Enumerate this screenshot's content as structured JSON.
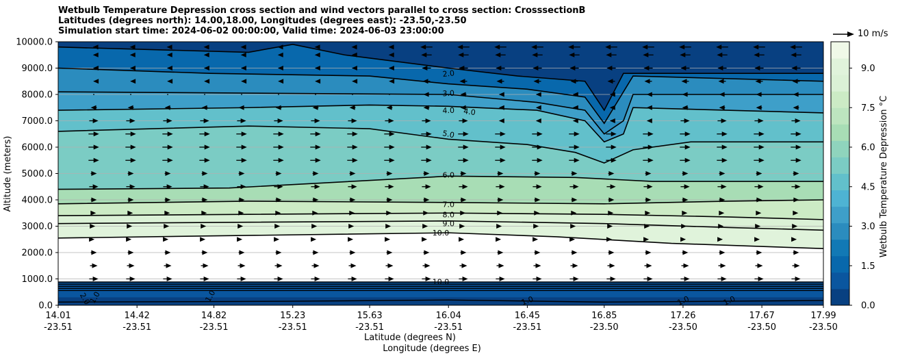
{
  "chart_data": {
    "type": "contourf",
    "title_lines": [
      "Wetbulb Temperature Depression cross section and wind vectors parallel to cross section: CrosssectionB",
      "Latitudes (degrees north): 14.00,18.00, Longitudes (degrees east): -23.50,-23.50",
      "Simulation start time: 2024-06-02 00:00:00, Valid time: 2024-06-03 23:00:00"
    ],
    "ylabel": "Altitude (meters)",
    "xlabel_lat": "Latitude (degrees N)",
    "xlabel_lon": "Longitude (degrees E)",
    "y_ticks": [
      "0.0",
      "1000.0",
      "2000.0",
      "3000.0",
      "4000.0",
      "5000.0",
      "6000.0",
      "7000.0",
      "8000.0",
      "9000.0",
      "10000.0"
    ],
    "ylim": [
      0,
      10000
    ],
    "xlim": [
      14.01,
      17.99
    ],
    "x_ticks": [
      {
        "lat": "14.01",
        "lon": "-23.51",
        "value": 14.01
      },
      {
        "lat": "14.42",
        "lon": "-23.51",
        "value": 14.42
      },
      {
        "lat": "14.82",
        "lon": "-23.51",
        "value": 14.82
      },
      {
        "lat": "15.23",
        "lon": "-23.51",
        "value": 15.23
      },
      {
        "lat": "15.63",
        "lon": "-23.51",
        "value": 15.63
      },
      {
        "lat": "16.04",
        "lon": "-23.51",
        "value": 16.04
      },
      {
        "lat": "16.45",
        "lon": "-23.51",
        "value": 16.45
      },
      {
        "lat": "16.85",
        "lon": "-23.50",
        "value": 16.85
      },
      {
        "lat": "17.26",
        "lon": "-23.50",
        "value": 17.26
      },
      {
        "lat": "17.67",
        "lon": "-23.50",
        "value": 17.67
      },
      {
        "lat": "17.99",
        "lon": "-23.50",
        "value": 17.99
      }
    ],
    "colorbar": {
      "label": "Wetbulb Temperature Depression °C",
      "range": [
        0,
        10
      ],
      "ticks": [
        "0.0",
        "1.5",
        "3.0",
        "4.5",
        "6.0",
        "7.5",
        "9.0"
      ],
      "colors": [
        "#084081",
        "#0a569f",
        "#0868ac",
        "#1279b5",
        "#2b8cbe",
        "#3e9fc9",
        "#4eb3d3",
        "#62c0cb",
        "#7bccc4",
        "#8fd4bd",
        "#a8ddb5",
        "#bde5bf",
        "#ccebc5",
        "#dbf1d6",
        "#e0f3db",
        "#f0f9e8"
      ]
    },
    "contour_labels": [
      "2.0",
      "3.0",
      "4.0",
      "4.0",
      "5.0",
      "6.0",
      "7.0",
      "8.0",
      "9.0",
      "10.0",
      "10.0",
      "1.0",
      "1.0",
      "1.0",
      "1.0",
      "1.0",
      "2.0"
    ],
    "quiver_key": "10 m/s",
    "wind_rows_m": [
      9800,
      9500,
      9000,
      8500,
      8000,
      7500,
      7000,
      6500,
      6000,
      5500,
      5000,
      4500,
      4000,
      3500,
      3000,
      2500,
      2000,
      1500,
      1000
    ],
    "wind_speeds": [
      -8,
      -7,
      -6,
      -5,
      -4,
      -4,
      6,
      7,
      7,
      7,
      4,
      6,
      4,
      3,
      2,
      1,
      4,
      5,
      6
    ],
    "contour_lines": [
      {
        "level": "10.0",
        "points": [
          [
            14.01,
            2550
          ],
          [
            15.0,
            2650
          ],
          [
            16.04,
            2750
          ],
          [
            16.6,
            2600
          ],
          [
            17.2,
            2350
          ],
          [
            17.99,
            2150
          ]
        ]
      },
      {
        "level": "9.0",
        "points": [
          [
            14.01,
            3100
          ],
          [
            15.0,
            3150
          ],
          [
            16.04,
            3200
          ],
          [
            16.85,
            3100
          ],
          [
            17.5,
            2950
          ],
          [
            17.99,
            2850
          ]
        ]
      },
      {
        "level": "8.0",
        "points": [
          [
            14.01,
            3400
          ],
          [
            15.0,
            3450
          ],
          [
            16.04,
            3500
          ],
          [
            16.85,
            3450
          ],
          [
            17.5,
            3350
          ],
          [
            17.99,
            3250
          ]
        ]
      },
      {
        "level": "7.0",
        "points": [
          [
            14.01,
            3850
          ],
          [
            15.0,
            3950
          ],
          [
            16.04,
            3900
          ],
          [
            16.85,
            3850
          ],
          [
            17.5,
            3950
          ],
          [
            17.99,
            4000
          ]
        ]
      },
      {
        "level": "6.0",
        "points": [
          [
            14.01,
            4400
          ],
          [
            14.9,
            4450
          ],
          [
            16.04,
            4900
          ],
          [
            16.7,
            4850
          ],
          [
            17.1,
            4700
          ],
          [
            17.99,
            4700
          ]
        ]
      },
      {
        "level": "5.0",
        "points": [
          [
            14.01,
            6600
          ],
          [
            15.0,
            6800
          ],
          [
            15.63,
            6700
          ],
          [
            16.04,
            6300
          ],
          [
            16.45,
            6100
          ],
          [
            16.7,
            5800
          ],
          [
            16.85,
            5400
          ],
          [
            17.0,
            5900
          ],
          [
            17.3,
            6200
          ],
          [
            17.99,
            6200
          ]
        ]
      },
      {
        "level": "4.0",
        "points": [
          [
            14.01,
            7400
          ],
          [
            15.0,
            7500
          ],
          [
            15.63,
            7600
          ],
          [
            16.04,
            7550
          ],
          [
            16.5,
            7400
          ],
          [
            16.75,
            7000
          ],
          [
            16.85,
            6200
          ],
          [
            16.95,
            6500
          ],
          [
            17.0,
            7500
          ],
          [
            17.99,
            7300
          ]
        ]
      },
      {
        "level": "3.0",
        "points": [
          [
            14.01,
            8100
          ],
          [
            15.0,
            8050
          ],
          [
            16.04,
            8000
          ],
          [
            16.5,
            7700
          ],
          [
            16.75,
            7400
          ],
          [
            16.85,
            6500
          ],
          [
            16.95,
            7000
          ],
          [
            17.0,
            8000
          ],
          [
            17.99,
            8000
          ]
        ]
      },
      {
        "level": "2.0",
        "points": [
          [
            14.01,
            9000
          ],
          [
            14.8,
            8800
          ],
          [
            15.63,
            8700
          ],
          [
            16.04,
            8400
          ],
          [
            16.45,
            8200
          ],
          [
            16.75,
            7900
          ],
          [
            16.85,
            6900
          ],
          [
            16.9,
            7500
          ],
          [
            17.0,
            8700
          ],
          [
            17.99,
            8500
          ]
        ]
      },
      {
        "level": "1.0",
        "points": [
          [
            14.01,
            9800
          ],
          [
            15.0,
            9600
          ],
          [
            15.23,
            9900
          ],
          [
            15.5,
            9500
          ],
          [
            16.04,
            9000
          ],
          [
            16.4,
            8700
          ],
          [
            16.75,
            8500
          ],
          [
            16.85,
            7400
          ],
          [
            16.95,
            8800
          ],
          [
            17.99,
            8800
          ]
        ]
      }
    ]
  }
}
